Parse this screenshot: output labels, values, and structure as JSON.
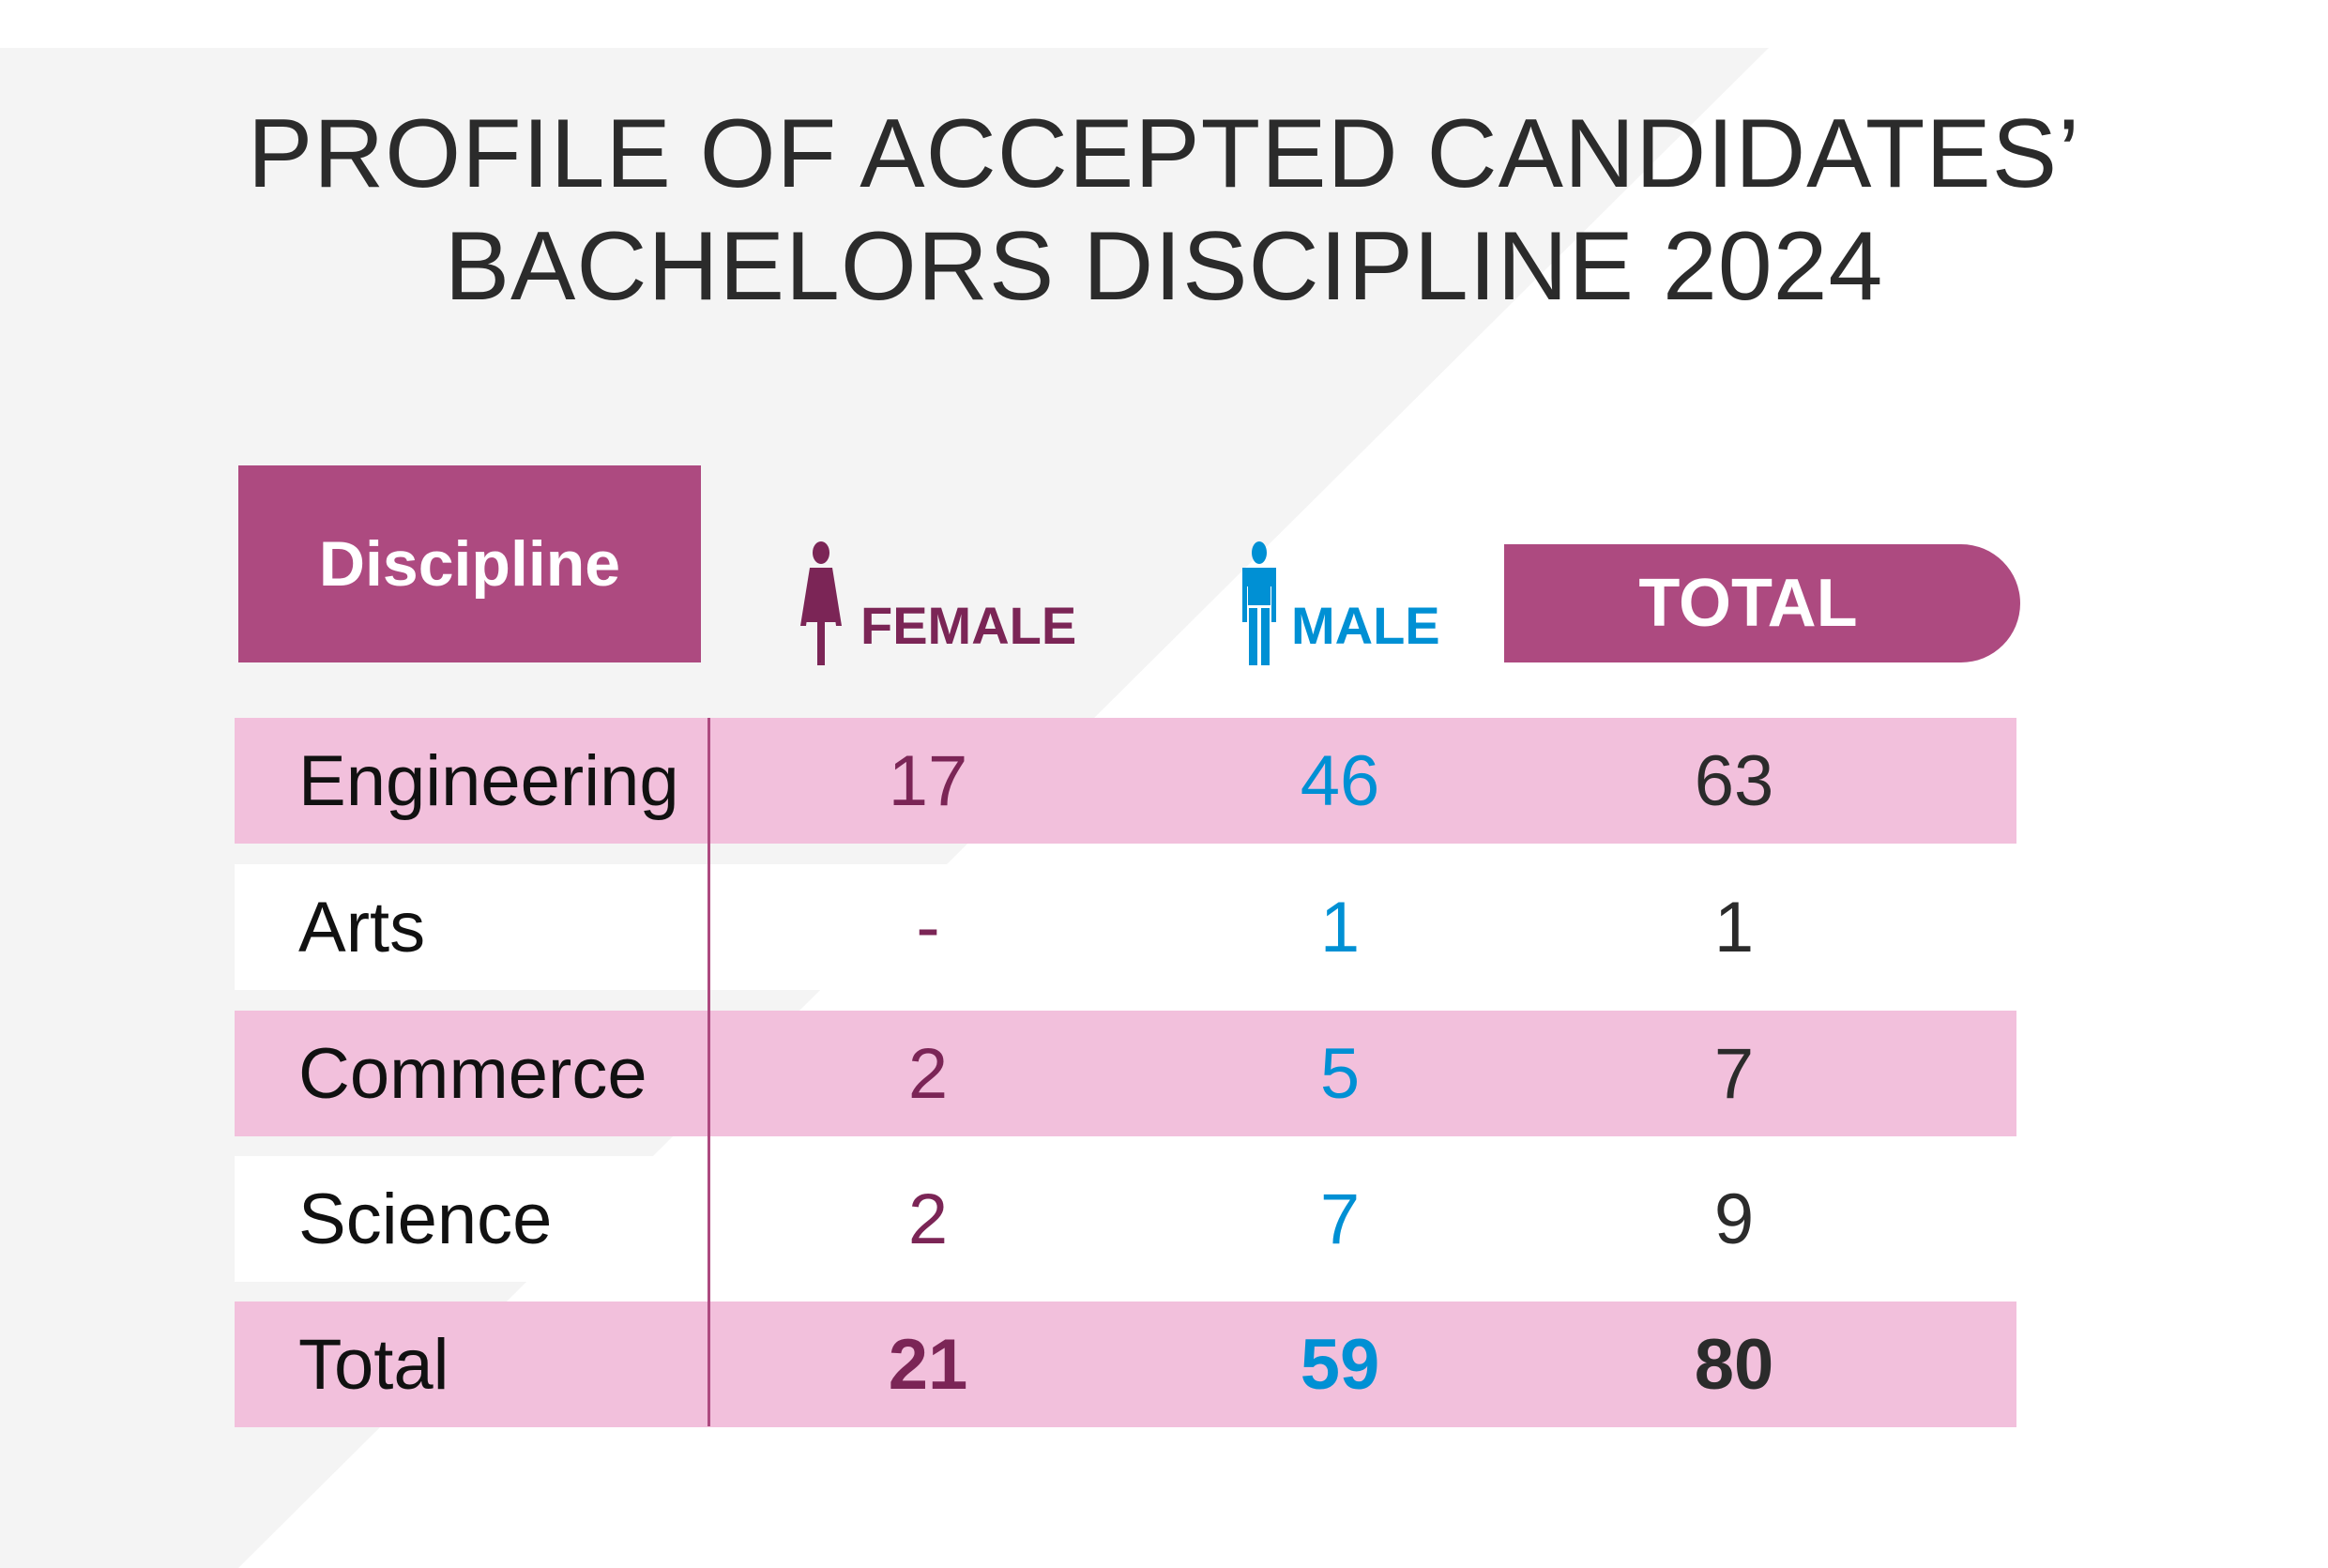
{
  "title": {
    "line1": "PROFILE OF ACCEPTED CANDIDATES’",
    "line2": "BACHELORS DISCIPLINE 2024"
  },
  "colors": {
    "accent": "#ad4a80",
    "row_pink": "#f2c0dc",
    "female": "#7b2556",
    "male": "#0090d4",
    "background_gray": "#f4f4f4"
  },
  "header": {
    "discipline": "Discipline",
    "female": "FEMALE",
    "female_icon": "female-person-icon",
    "male": "MALE",
    "male_icon": "male-person-icon",
    "total": "TOTAL"
  },
  "rows": [
    {
      "discipline": "Engineering",
      "female": "17",
      "male": "46",
      "total": "63"
    },
    {
      "discipline": "Arts",
      "female": "-",
      "male": "1",
      "total": "1"
    },
    {
      "discipline": "Commerce",
      "female": "2",
      "male": "5",
      "total": "7"
    },
    {
      "discipline": "Science",
      "female": "2",
      "male": "7",
      "total": "9"
    },
    {
      "discipline": "Total",
      "female": "21",
      "male": "59",
      "total": "80"
    }
  ]
}
